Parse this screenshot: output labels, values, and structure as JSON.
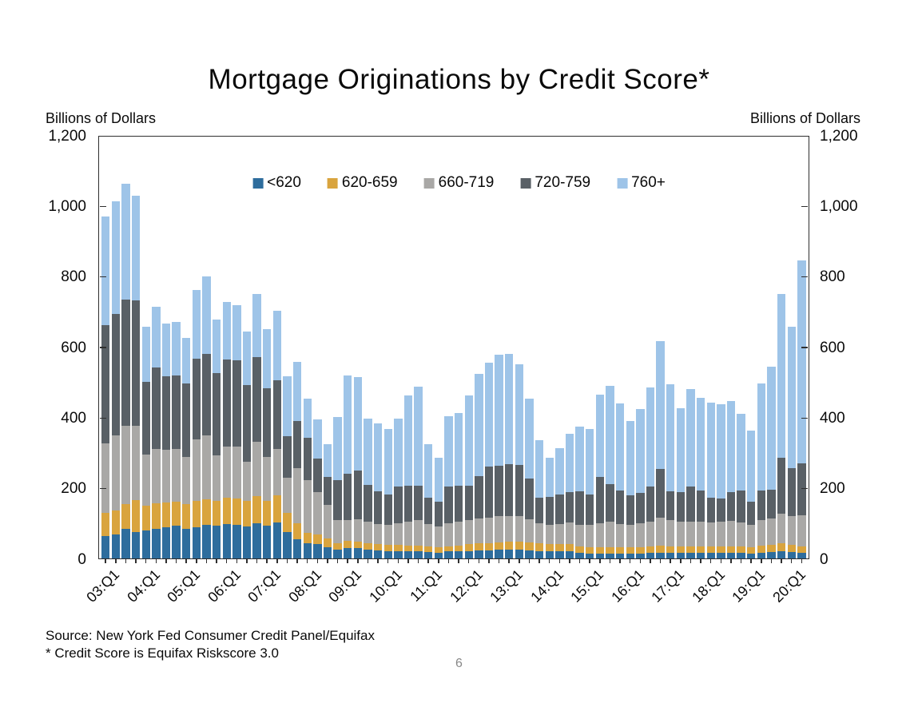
{
  "title": "Mortgage Originations by Credit Score*",
  "y_axis": {
    "label_left": "Billions of Dollars",
    "label_right": "Billions of Dollars",
    "tick_labels": [
      "1,200",
      "1,000",
      "800",
      "600",
      "400",
      "200",
      "0"
    ],
    "tick_values": [
      1200,
      1000,
      800,
      600,
      400,
      200,
      0
    ]
  },
  "footer": {
    "source": "Source: New York Fed Consumer Credit Panel/Equifax",
    "note": "* Credit Score is Equifax Riskscore 3.0",
    "page_number": "6"
  },
  "chart_data": {
    "type": "bar",
    "stacked": true,
    "title": "Mortgage Originations by Credit Score*",
    "xlabel": "",
    "ylabel": "Billions of Dollars",
    "ylim": [
      0,
      1200
    ],
    "grid": false,
    "legend_position": "top-center-inside",
    "x_label_every": 4,
    "categories": [
      "03:Q1",
      "03:Q2",
      "03:Q3",
      "03:Q4",
      "04:Q1",
      "04:Q2",
      "04:Q3",
      "04:Q4",
      "05:Q1",
      "05:Q2",
      "05:Q3",
      "05:Q4",
      "06:Q1",
      "06:Q2",
      "06:Q3",
      "06:Q4",
      "07:Q1",
      "07:Q2",
      "07:Q3",
      "07:Q4",
      "08:Q1",
      "08:Q2",
      "08:Q3",
      "08:Q4",
      "09:Q1",
      "09:Q2",
      "09:Q3",
      "09:Q4",
      "10:Q1",
      "10:Q2",
      "10:Q3",
      "10:Q4",
      "11:Q1",
      "11:Q2",
      "11:Q3",
      "11:Q4",
      "12:Q1",
      "12:Q2",
      "12:Q3",
      "12:Q4",
      "13:Q1",
      "13:Q2",
      "13:Q3",
      "13:Q4",
      "14:Q1",
      "14:Q2",
      "14:Q3",
      "14:Q4",
      "15:Q1",
      "15:Q2",
      "15:Q3",
      "15:Q4",
      "16:Q1",
      "16:Q2",
      "16:Q3",
      "16:Q4",
      "17:Q1",
      "17:Q2",
      "17:Q3",
      "17:Q4",
      "18:Q1",
      "18:Q2",
      "18:Q3",
      "18:Q4",
      "19:Q1",
      "19:Q2",
      "19:Q3",
      "19:Q4",
      "20:Q1",
      "20:Q2"
    ],
    "series": [
      {
        "name": "<620",
        "color": "#2e6d9d",
        "values": [
          64,
          68,
          83,
          75,
          79,
          84,
          89,
          92,
          83,
          89,
          94,
          92,
          98,
          96,
          90,
          99,
          92,
          102,
          75,
          55,
          42,
          41,
          32,
          25,
          30,
          29,
          25,
          23,
          21,
          21,
          20,
          20,
          18,
          17,
          20,
          20,
          21,
          23,
          23,
          24,
          25,
          25,
          23,
          21,
          20,
          20,
          20,
          15,
          13,
          14,
          14,
          14,
          14,
          14,
          15,
          17,
          15,
          15,
          16,
          16,
          15,
          16,
          17,
          15,
          14,
          17,
          18,
          21,
          18,
          17
        ]
      },
      {
        "name": "620-659",
        "color": "#d9a43e",
        "values": [
          66,
          67,
          70,
          90,
          70,
          72,
          69,
          68,
          71,
          73,
          73,
          70,
          74,
          73,
          72,
          78,
          72,
          78,
          55,
          45,
          30,
          28,
          24,
          19,
          20,
          18,
          17,
          17,
          17,
          17,
          16,
          16,
          17,
          15,
          15,
          16,
          19,
          19,
          21,
          21,
          22,
          22,
          22,
          21,
          20,
          21,
          21,
          20,
          18,
          18,
          18,
          18,
          17,
          18,
          18,
          19,
          20,
          19,
          19,
          19,
          18,
          19,
          18,
          19,
          18,
          19,
          20,
          21,
          20,
          18
        ]
      },
      {
        "name": "660-719",
        "color": "#a9a8a6",
        "values": [
          197,
          213,
          222,
          212,
          145,
          155,
          149,
          151,
          134,
          175,
          181,
          130,
          146,
          147,
          111,
          153,
          124,
          131,
          98,
          155,
          150,
          120,
          95,
          64,
          58,
          64,
          62,
          58,
          57,
          62,
          68,
          72,
          63,
          58,
          65,
          68,
          68,
          71,
          71,
          74,
          73,
          72,
          66,
          58,
          55,
          57,
          62,
          60,
          64,
          68,
          72,
          66,
          65,
          68,
          72,
          79,
          73,
          70,
          70,
          70,
          69,
          70,
          71,
          68,
          63,
          72,
          75,
          85,
          81,
          88
        ]
      },
      {
        "name": "720-759",
        "color": "#596066",
        "values": [
          334,
          346,
          359,
          355,
          207,
          231,
          209,
          207,
          209,
          229,
          232,
          234,
          247,
          245,
          218,
          241,
          195,
          195,
          118,
          135,
          120,
          95,
          79,
          114,
          132,
          139,
          105,
          93,
          87,
          103,
          101,
          99,
          74,
          70,
          103,
          103,
          99,
          120,
          145,
          143,
          147,
          145,
          116,
          72,
          80,
          83,
          84,
          95,
          87,
          131,
          106,
          94,
          82,
          86,
          99,
          139,
          83,
          85,
          99,
          88,
          71,
          66,
          82,
          91,
          66,
          85,
          82,
          158,
          136,
          147
        ]
      },
      {
        "name": "760+",
        "color": "#9ec4e8",
        "values": [
          308,
          318,
          328,
          295,
          156,
          171,
          150,
          152,
          127,
          196,
          220,
          152,
          163,
          158,
          152,
          179,
          168,
          196,
          170,
          167,
          110,
          110,
          95,
          178,
          279,
          265,
          188,
          191,
          186,
          194,
          258,
          279,
          153,
          126,
          201,
          205,
          256,
          290,
          294,
          316,
          313,
          287,
          225,
          163,
          111,
          131,
          166,
          184,
          184,
          234,
          280,
          247,
          212,
          237,
          280,
          363,
          303,
          237,
          275,
          262,
          268,
          266,
          257,
          217,
          201,
          303,
          349,
          464,
          402,
          574
        ]
      }
    ]
  }
}
